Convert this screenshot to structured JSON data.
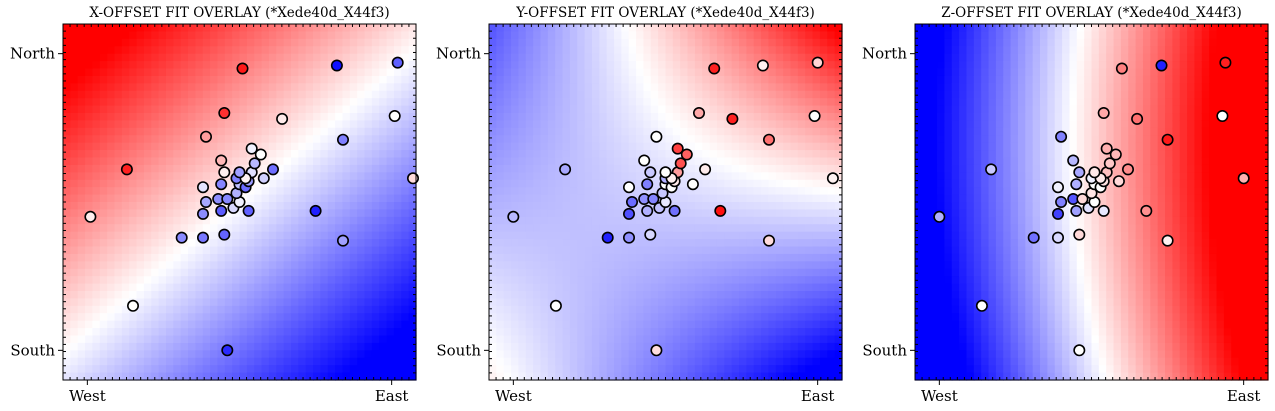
{
  "chart_data": [
    {
      "type": "scatter",
      "title": "X-OFFSET FIT OVERLAY (*Xede40d_X44f3)",
      "x_ticks": [
        "West",
        "East"
      ],
      "y_ticks": [
        "North",
        "South"
      ],
      "xlim": [
        -0.08,
        1.08
      ],
      "ylim": [
        -0.1,
        1.1
      ],
      "background": "linear-gradient",
      "points": [
        {
          "x": 0.01,
          "y": 0.45,
          "c": "#ffeeee"
        },
        {
          "x": 0.13,
          "y": 0.61,
          "c": "#ff2020"
        },
        {
          "x": 0.15,
          "y": 0.15,
          "c": "#ffffff"
        },
        {
          "x": 0.31,
          "y": 0.38,
          "c": "#8a8aff"
        },
        {
          "x": 0.38,
          "y": 0.38,
          "c": "#7878ff"
        },
        {
          "x": 0.45,
          "y": 0.39,
          "c": "#6464ff"
        },
        {
          "x": 0.38,
          "y": 0.46,
          "c": "#8c8cff"
        },
        {
          "x": 0.39,
          "y": 0.5,
          "c": "#a8a8ff"
        },
        {
          "x": 0.38,
          "y": 0.55,
          "c": "#e4e4ff"
        },
        {
          "x": 0.43,
          "y": 0.51,
          "c": "#8f8fff"
        },
        {
          "x": 0.44,
          "y": 0.47,
          "c": "#5c5cff"
        },
        {
          "x": 0.46,
          "y": 0.51,
          "c": "#8888ff"
        },
        {
          "x": 0.44,
          "y": 0.56,
          "c": "#8585ff"
        },
        {
          "x": 0.45,
          "y": 0.6,
          "c": "#fff0f0"
        },
        {
          "x": 0.44,
          "y": 0.64,
          "c": "#ffb8b8"
        },
        {
          "x": 0.39,
          "y": 0.72,
          "c": "#ff9c9c"
        },
        {
          "x": 0.45,
          "y": 0.8,
          "c": "#ff3030"
        },
        {
          "x": 0.51,
          "y": 0.95,
          "c": "#ff1818"
        },
        {
          "x": 0.48,
          "y": 0.48,
          "c": "#d8d8ff"
        },
        {
          "x": 0.5,
          "y": 0.5,
          "c": "#f0f0ff"
        },
        {
          "x": 0.49,
          "y": 0.53,
          "c": "#b0b0ff"
        },
        {
          "x": 0.5,
          "y": 0.56,
          "c": "#c0c0ff"
        },
        {
          "x": 0.49,
          "y": 0.58,
          "c": "#8080ff"
        },
        {
          "x": 0.52,
          "y": 0.55,
          "c": "#6a6aff"
        },
        {
          "x": 0.53,
          "y": 0.57,
          "c": "#9a9aff"
        },
        {
          "x": 0.54,
          "y": 0.6,
          "c": "#e0e0ff"
        },
        {
          "x": 0.53,
          "y": 0.47,
          "c": "#6060ff"
        },
        {
          "x": 0.55,
          "y": 0.63,
          "c": "#b8b8ff"
        },
        {
          "x": 0.54,
          "y": 0.68,
          "c": "#f2f2ff"
        },
        {
          "x": 0.57,
          "y": 0.66,
          "c": "#ffffff"
        },
        {
          "x": 0.52,
          "y": 0.58,
          "c": "#fff4f4"
        },
        {
          "x": 0.5,
          "y": 0.6,
          "c": "#a0a0ff"
        },
        {
          "x": 0.61,
          "y": 0.61,
          "c": "#7070ff"
        },
        {
          "x": 0.58,
          "y": 0.58,
          "c": "#d0d0ff"
        },
        {
          "x": 0.64,
          "y": 0.78,
          "c": "#ffeaea"
        },
        {
          "x": 0.75,
          "y": 0.47,
          "c": "#2020ff"
        },
        {
          "x": 0.82,
          "y": 0.96,
          "c": "#1010ff"
        },
        {
          "x": 0.84,
          "y": 0.71,
          "c": "#8080ff"
        },
        {
          "x": 0.84,
          "y": 0.37,
          "c": "#a0a0ff"
        },
        {
          "x": 0.46,
          "y": 0.0,
          "c": "#2a2aff"
        },
        {
          "x": 1.02,
          "y": 0.97,
          "c": "#6060ff"
        },
        {
          "x": 1.01,
          "y": 0.79,
          "c": "#ffffff"
        },
        {
          "x": 1.07,
          "y": 0.58,
          "c": "#ffdcdc"
        }
      ]
    },
    {
      "type": "scatter",
      "title": "Y-OFFSET FIT OVERLAY (*Xede40d_X44f3)",
      "x_ticks": [
        "West",
        "East"
      ],
      "y_ticks": [
        "North",
        "South"
      ],
      "xlim": [
        -0.08,
        1.08
      ],
      "ylim": [
        -0.1,
        1.1
      ],
      "background": "saddle",
      "points": [
        {
          "x": 0.0,
          "y": 0.45,
          "c": "#b8b8ff"
        },
        {
          "x": 0.17,
          "y": 0.61,
          "c": "#a8a8ff"
        },
        {
          "x": 0.14,
          "y": 0.15,
          "c": "#ffffff"
        },
        {
          "x": 0.31,
          "y": 0.38,
          "c": "#2020ff"
        },
        {
          "x": 0.38,
          "y": 0.38,
          "c": "#9090ff"
        },
        {
          "x": 0.45,
          "y": 0.39,
          "c": "#d8d8ff"
        },
        {
          "x": 0.38,
          "y": 0.46,
          "c": "#5050ff"
        },
        {
          "x": 0.39,
          "y": 0.5,
          "c": "#6c6cff"
        },
        {
          "x": 0.38,
          "y": 0.55,
          "c": "#ffffff"
        },
        {
          "x": 0.43,
          "y": 0.51,
          "c": "#9090ff"
        },
        {
          "x": 0.44,
          "y": 0.47,
          "c": "#b0b0ff"
        },
        {
          "x": 0.46,
          "y": 0.51,
          "c": "#8484ff"
        },
        {
          "x": 0.44,
          "y": 0.56,
          "c": "#8080ff"
        },
        {
          "x": 0.45,
          "y": 0.6,
          "c": "#c8c8ff"
        },
        {
          "x": 0.43,
          "y": 0.64,
          "c": "#ffffff"
        },
        {
          "x": 0.47,
          "y": 0.72,
          "c": "#ffffff"
        },
        {
          "x": 0.61,
          "y": 0.8,
          "c": "#ffa8a8"
        },
        {
          "x": 0.66,
          "y": 0.95,
          "c": "#ff2020"
        },
        {
          "x": 0.48,
          "y": 0.48,
          "c": "#c0c0ff"
        },
        {
          "x": 0.5,
          "y": 0.5,
          "c": "#e8e8ff"
        },
        {
          "x": 0.49,
          "y": 0.53,
          "c": "#c8c8ff"
        },
        {
          "x": 0.5,
          "y": 0.56,
          "c": "#ffffff"
        },
        {
          "x": 0.5,
          "y": 0.58,
          "c": "#b0b0ff"
        },
        {
          "x": 0.52,
          "y": 0.55,
          "c": "#ffffff"
        },
        {
          "x": 0.53,
          "y": 0.57,
          "c": "#ffe8e8"
        },
        {
          "x": 0.54,
          "y": 0.6,
          "c": "#ff9c9c"
        },
        {
          "x": 0.53,
          "y": 0.47,
          "c": "#7070ff"
        },
        {
          "x": 0.55,
          "y": 0.63,
          "c": "#ff5050"
        },
        {
          "x": 0.54,
          "y": 0.68,
          "c": "#ff4040"
        },
        {
          "x": 0.57,
          "y": 0.66,
          "c": "#ff6060"
        },
        {
          "x": 0.52,
          "y": 0.58,
          "c": "#fff0f0"
        },
        {
          "x": 0.5,
          "y": 0.6,
          "c": "#ffffff"
        },
        {
          "x": 0.63,
          "y": 0.61,
          "c": "#ffecec"
        },
        {
          "x": 0.59,
          "y": 0.56,
          "c": "#ffffff"
        },
        {
          "x": 0.72,
          "y": 0.78,
          "c": "#ff2020"
        },
        {
          "x": 0.68,
          "y": 0.47,
          "c": "#ff1010"
        },
        {
          "x": 0.82,
          "y": 0.96,
          "c": "#fff0f0"
        },
        {
          "x": 0.84,
          "y": 0.71,
          "c": "#ff7070"
        },
        {
          "x": 0.84,
          "y": 0.37,
          "c": "#ffdcdc"
        },
        {
          "x": 0.47,
          "y": 0.0,
          "c": "#ffdede"
        },
        {
          "x": 1.0,
          "y": 0.97,
          "c": "#ffd4d4"
        },
        {
          "x": 0.99,
          "y": 0.79,
          "c": "#ffffff"
        },
        {
          "x": 1.05,
          "y": 0.58,
          "c": "#fff2f2"
        }
      ]
    },
    {
      "type": "scatter",
      "title": "Z-OFFSET FIT OVERLAY (*Xede40d_X44f3)",
      "x_ticks": [
        "West",
        "East"
      ],
      "y_ticks": [
        "North",
        "South"
      ],
      "xlim": [
        -0.08,
        1.08
      ],
      "ylim": [
        -0.1,
        1.1
      ],
      "background": "horizontal",
      "points": [
        {
          "x": 0.0,
          "y": 0.45,
          "c": "#b0b0ff"
        },
        {
          "x": 0.17,
          "y": 0.61,
          "c": "#c8c8ff"
        },
        {
          "x": 0.14,
          "y": 0.15,
          "c": "#ffffff"
        },
        {
          "x": 0.31,
          "y": 0.38,
          "c": "#7070ff"
        },
        {
          "x": 0.39,
          "y": 0.38,
          "c": "#d8d8ff"
        },
        {
          "x": 0.46,
          "y": 0.39,
          "c": "#ffd8d8"
        },
        {
          "x": 0.39,
          "y": 0.46,
          "c": "#4040ff"
        },
        {
          "x": 0.4,
          "y": 0.5,
          "c": "#8080ff"
        },
        {
          "x": 0.39,
          "y": 0.55,
          "c": "#f0f0ff"
        },
        {
          "x": 0.44,
          "y": 0.51,
          "c": "#5454ff"
        },
        {
          "x": 0.45,
          "y": 0.47,
          "c": "#a0a0ff"
        },
        {
          "x": 0.47,
          "y": 0.51,
          "c": "#ffd8d8"
        },
        {
          "x": 0.45,
          "y": 0.56,
          "c": "#b0b0ff"
        },
        {
          "x": 0.46,
          "y": 0.6,
          "c": "#a8a8ff"
        },
        {
          "x": 0.44,
          "y": 0.64,
          "c": "#b8b8ff"
        },
        {
          "x": 0.4,
          "y": 0.72,
          "c": "#8080ff"
        },
        {
          "x": 0.54,
          "y": 0.8,
          "c": "#ffa8a8"
        },
        {
          "x": 0.6,
          "y": 0.95,
          "c": "#ff8080"
        },
        {
          "x": 0.49,
          "y": 0.48,
          "c": "#e0e0ff"
        },
        {
          "x": 0.51,
          "y": 0.5,
          "c": "#ffffff"
        },
        {
          "x": 0.5,
          "y": 0.53,
          "c": "#ffe4e4"
        },
        {
          "x": 0.51,
          "y": 0.56,
          "c": "#ffffff"
        },
        {
          "x": 0.5,
          "y": 0.58,
          "c": "#f0f0ff"
        },
        {
          "x": 0.53,
          "y": 0.55,
          "c": "#ffffff"
        },
        {
          "x": 0.54,
          "y": 0.57,
          "c": "#ffe0e0"
        },
        {
          "x": 0.55,
          "y": 0.6,
          "c": "#ffc0c0"
        },
        {
          "x": 0.54,
          "y": 0.47,
          "c": "#e8e8ff"
        },
        {
          "x": 0.56,
          "y": 0.63,
          "c": "#ffc8c8"
        },
        {
          "x": 0.55,
          "y": 0.68,
          "c": "#ffb0b0"
        },
        {
          "x": 0.58,
          "y": 0.66,
          "c": "#ffb8b8"
        },
        {
          "x": 0.53,
          "y": 0.58,
          "c": "#ffeaea"
        },
        {
          "x": 0.51,
          "y": 0.6,
          "c": "#ffe8e8"
        },
        {
          "x": 0.62,
          "y": 0.61,
          "c": "#ff8c8c"
        },
        {
          "x": 0.59,
          "y": 0.57,
          "c": "#ffd8d8"
        },
        {
          "x": 0.65,
          "y": 0.78,
          "c": "#ff7070"
        },
        {
          "x": 0.68,
          "y": 0.47,
          "c": "#ff9090"
        },
        {
          "x": 0.73,
          "y": 0.96,
          "c": "#2020ff"
        },
        {
          "x": 0.75,
          "y": 0.71,
          "c": "#ff1818"
        },
        {
          "x": 0.75,
          "y": 0.37,
          "c": "#fff0f0"
        },
        {
          "x": 0.46,
          "y": 0.0,
          "c": "#ffffff"
        },
        {
          "x": 0.94,
          "y": 0.97,
          "c": "#ff2020"
        },
        {
          "x": 0.93,
          "y": 0.79,
          "c": "#ffffff"
        },
        {
          "x": 1.0,
          "y": 0.58,
          "c": "#ffb0b0"
        }
      ]
    }
  ]
}
